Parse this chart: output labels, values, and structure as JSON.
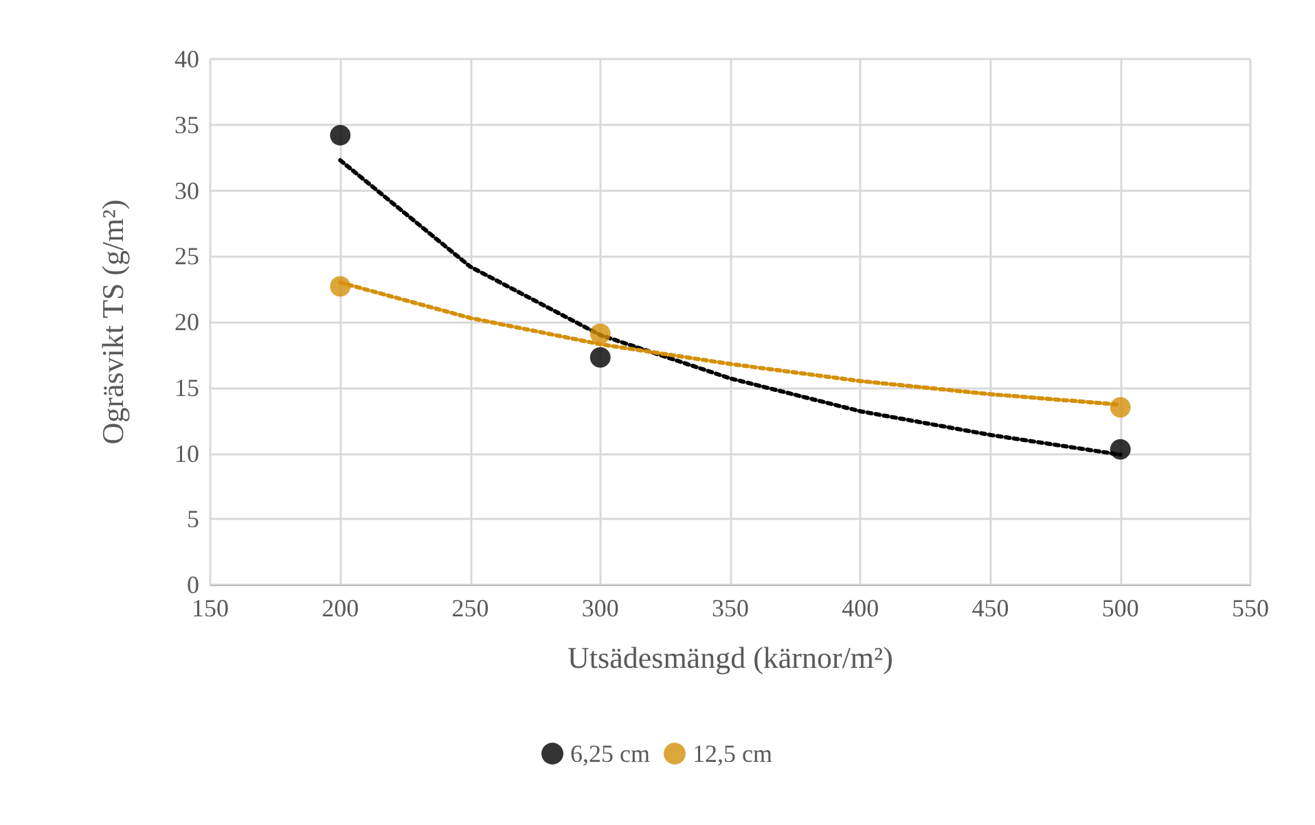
{
  "chart_data": {
    "type": "scatter",
    "xlabel": "Utsädesmängd (kärnor/m²)",
    "ylabel": "Ogräsvikt TS (g/m²)",
    "xlim": [
      150,
      550
    ],
    "xticks": [
      150,
      200,
      250,
      300,
      350,
      400,
      450,
      500,
      550
    ],
    "ylim": [
      0,
      40
    ],
    "yticks": [
      0,
      5,
      10,
      15,
      20,
      25,
      30,
      35,
      40
    ],
    "grid": true,
    "legend": "bottom",
    "marker": "circle",
    "series": [
      {
        "name": "6,25 cm",
        "color": "#000000",
        "x": [
          200,
          300,
          500
        ],
        "values": [
          34.2,
          17.3,
          10.3
        ]
      },
      {
        "name": "12,5 cm",
        "color": "#d4900a",
        "x": [
          200,
          300,
          500
        ],
        "values": [
          22.7,
          19.1,
          13.5
        ]
      },
      {
        "type": "line",
        "color": "#000000",
        "line_style": "dotted",
        "marker": "none",
        "x": [
          200,
          250,
          300,
          350,
          400,
          450,
          500
        ],
        "values": [
          32.3,
          24.2,
          19.0,
          15.7,
          13.2,
          11.4,
          9.9
        ]
      },
      {
        "type": "line",
        "color": "#d4900a",
        "line_style": "dotted",
        "marker": "none",
        "x": [
          200,
          250,
          300,
          350,
          400,
          450,
          500
        ],
        "values": [
          23.0,
          20.3,
          18.3,
          16.8,
          15.5,
          14.5,
          13.7
        ]
      }
    ]
  }
}
